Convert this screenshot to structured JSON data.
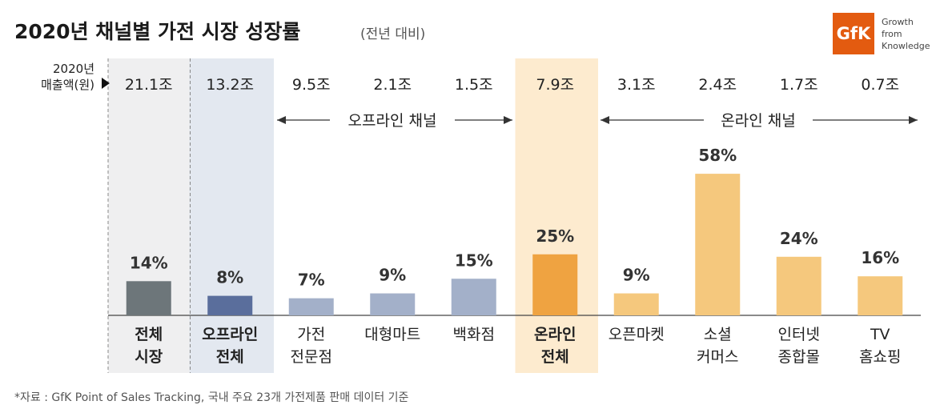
{
  "header": {
    "title": "2020년 채널별 가전 시장 성장률",
    "subtitle": "(전년 대비)"
  },
  "brand": {
    "logo_text": "GfK",
    "tagline": [
      "Growth",
      "from",
      "Knowledge"
    ],
    "color": "#e35b10"
  },
  "sales_label": [
    "2020년",
    "매출액(원)"
  ],
  "groups": {
    "offline": "오프라인 채널",
    "online": "온라인 채널"
  },
  "footnote": "*자료 : GfK Point of Sales Tracking, 국내 주요 23개 가전제품 판매 데이터 기준",
  "chart_data": {
    "type": "bar",
    "title": "2020년 채널별 가전 시장 성장률",
    "subtitle": "(전년 대비)",
    "unit": "%",
    "categories": [
      [
        "전체",
        "시장"
      ],
      [
        "오프라인",
        "전체"
      ],
      [
        "가전",
        "전문점"
      ],
      [
        "대형마트"
      ],
      [
        "백화점"
      ],
      [
        "온라인",
        "전체"
      ],
      [
        "오픈마켓"
      ],
      [
        "소셜",
        "커머스"
      ],
      [
        "인터넷",
        "종합몰"
      ],
      [
        "TV",
        "홈쇼핑"
      ]
    ],
    "growth": [
      14,
      8,
      7,
      9,
      15,
      25,
      9,
      58,
      24,
      16
    ],
    "growth_labels": [
      "14%",
      "8%",
      "7%",
      "9%",
      "15%",
      "25%",
      "9%",
      "58%",
      "24%",
      "16%"
    ],
    "sales": [
      "21.1조",
      "13.2조",
      "9.5조",
      "2.1조",
      "1.5조",
      "7.9조",
      "3.1조",
      "2.4조",
      "1.7조",
      "0.7조"
    ],
    "bold_categories": [
      0,
      1,
      5
    ],
    "colors": [
      "#6d767a",
      "#5a6e9c",
      "#a3b0c9",
      "#a3b0c9",
      "#a3b0c9",
      "#efa341",
      "#f5c87d",
      "#f5c87d",
      "#f5c87d",
      "#f5c87d"
    ],
    "highlight_colors": {
      "total": "#efeff0",
      "offline_total": "#e3e8f0",
      "online_total": "#fdebcf"
    },
    "ylim": [
      0,
      60
    ]
  }
}
